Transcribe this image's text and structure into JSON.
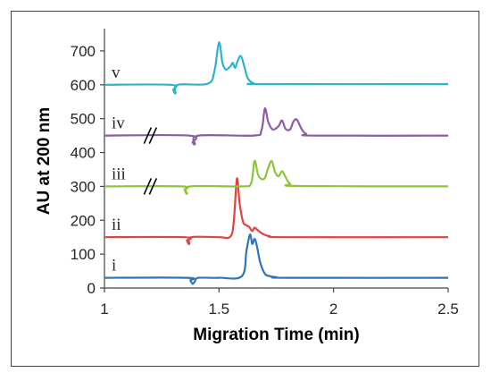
{
  "chart_data": {
    "type": "line",
    "title": "",
    "xlabel": "Migration Time (min)",
    "ylabel": "AU at 200 nm",
    "xlim": [
      1,
      2.5
    ],
    "ylim": [
      0,
      750
    ],
    "x_ticks": [
      1,
      1.5,
      2,
      2.5
    ],
    "y_ticks": [
      0,
      100,
      200,
      300,
      400,
      500,
      600,
      700
    ],
    "x_tick_labels": [
      "1",
      "1.5",
      "2",
      "2.5"
    ],
    "y_tick_labels": [
      "0",
      "100",
      "200",
      "300",
      "400",
      "500",
      "600",
      "700"
    ],
    "grid": false,
    "legend": "none",
    "axis_break_marks": [
      "iv",
      "iii"
    ],
    "series": [
      {
        "label": "i",
        "color": "#2e75b6",
        "baseline": 30,
        "x": [
          1.0,
          1.36,
          1.375,
          1.385,
          1.395,
          1.41,
          1.5,
          1.6,
          1.62,
          1.635,
          1.645,
          1.655,
          1.665,
          1.68,
          1.7,
          1.72,
          1.75,
          1.8,
          2.5
        ],
        "y": [
          30,
          30,
          22,
          12,
          20,
          30,
          30,
          35,
          110,
          158,
          130,
          145,
          125,
          75,
          42,
          35,
          32,
          30,
          30
        ]
      },
      {
        "label": "ii",
        "color": "#e0443e",
        "baseline": 150,
        "x": [
          1.0,
          1.35,
          1.36,
          1.37,
          1.38,
          1.5,
          1.55,
          1.565,
          1.578,
          1.59,
          1.605,
          1.62,
          1.632,
          1.645,
          1.655,
          1.67,
          1.69,
          1.72,
          1.8,
          2.5
        ],
        "y": [
          150,
          150,
          140,
          130,
          150,
          150,
          152,
          200,
          323,
          250,
          195,
          185,
          180,
          168,
          178,
          170,
          160,
          153,
          150,
          150
        ]
      },
      {
        "label": "iii",
        "color": "#8cc43c",
        "baseline": 300,
        "x": [
          1.0,
          1.335,
          1.35,
          1.36,
          1.375,
          1.6,
          1.64,
          1.655,
          1.67,
          1.685,
          1.7,
          1.715,
          1.73,
          1.745,
          1.76,
          1.775,
          1.79,
          1.81,
          1.85,
          2.5
        ],
        "y": [
          300,
          300,
          290,
          278,
          300,
          300,
          310,
          375,
          335,
          322,
          325,
          355,
          375,
          342,
          330,
          345,
          328,
          308,
          301,
          300
        ]
      },
      {
        "label": "iv",
        "color": "#8c5ca8",
        "baseline": 450,
        "x": [
          1.0,
          1.37,
          1.385,
          1.395,
          1.41,
          1.65,
          1.685,
          1.7,
          1.715,
          1.735,
          1.76,
          1.775,
          1.79,
          1.81,
          1.825,
          1.84,
          1.86,
          1.88,
          1.92,
          2.5
        ],
        "y": [
          450,
          450,
          430,
          425,
          450,
          450,
          465,
          530,
          490,
          468,
          478,
          495,
          470,
          468,
          492,
          497,
          470,
          455,
          450,
          450
        ]
      },
      {
        "label": "v",
        "color": "#2bb5c8",
        "baseline": 600,
        "x": [
          1.0,
          1.29,
          1.3,
          1.31,
          1.32,
          1.45,
          1.48,
          1.5,
          1.515,
          1.53,
          1.55,
          1.56,
          1.57,
          1.58,
          1.595,
          1.61,
          1.625,
          1.65,
          1.7,
          2.5
        ],
        "y": [
          600,
          600,
          585,
          575,
          600,
          603,
          640,
          725,
          665,
          645,
          655,
          665,
          650,
          668,
          685,
          655,
          620,
          605,
          602,
          602
        ]
      }
    ]
  }
}
